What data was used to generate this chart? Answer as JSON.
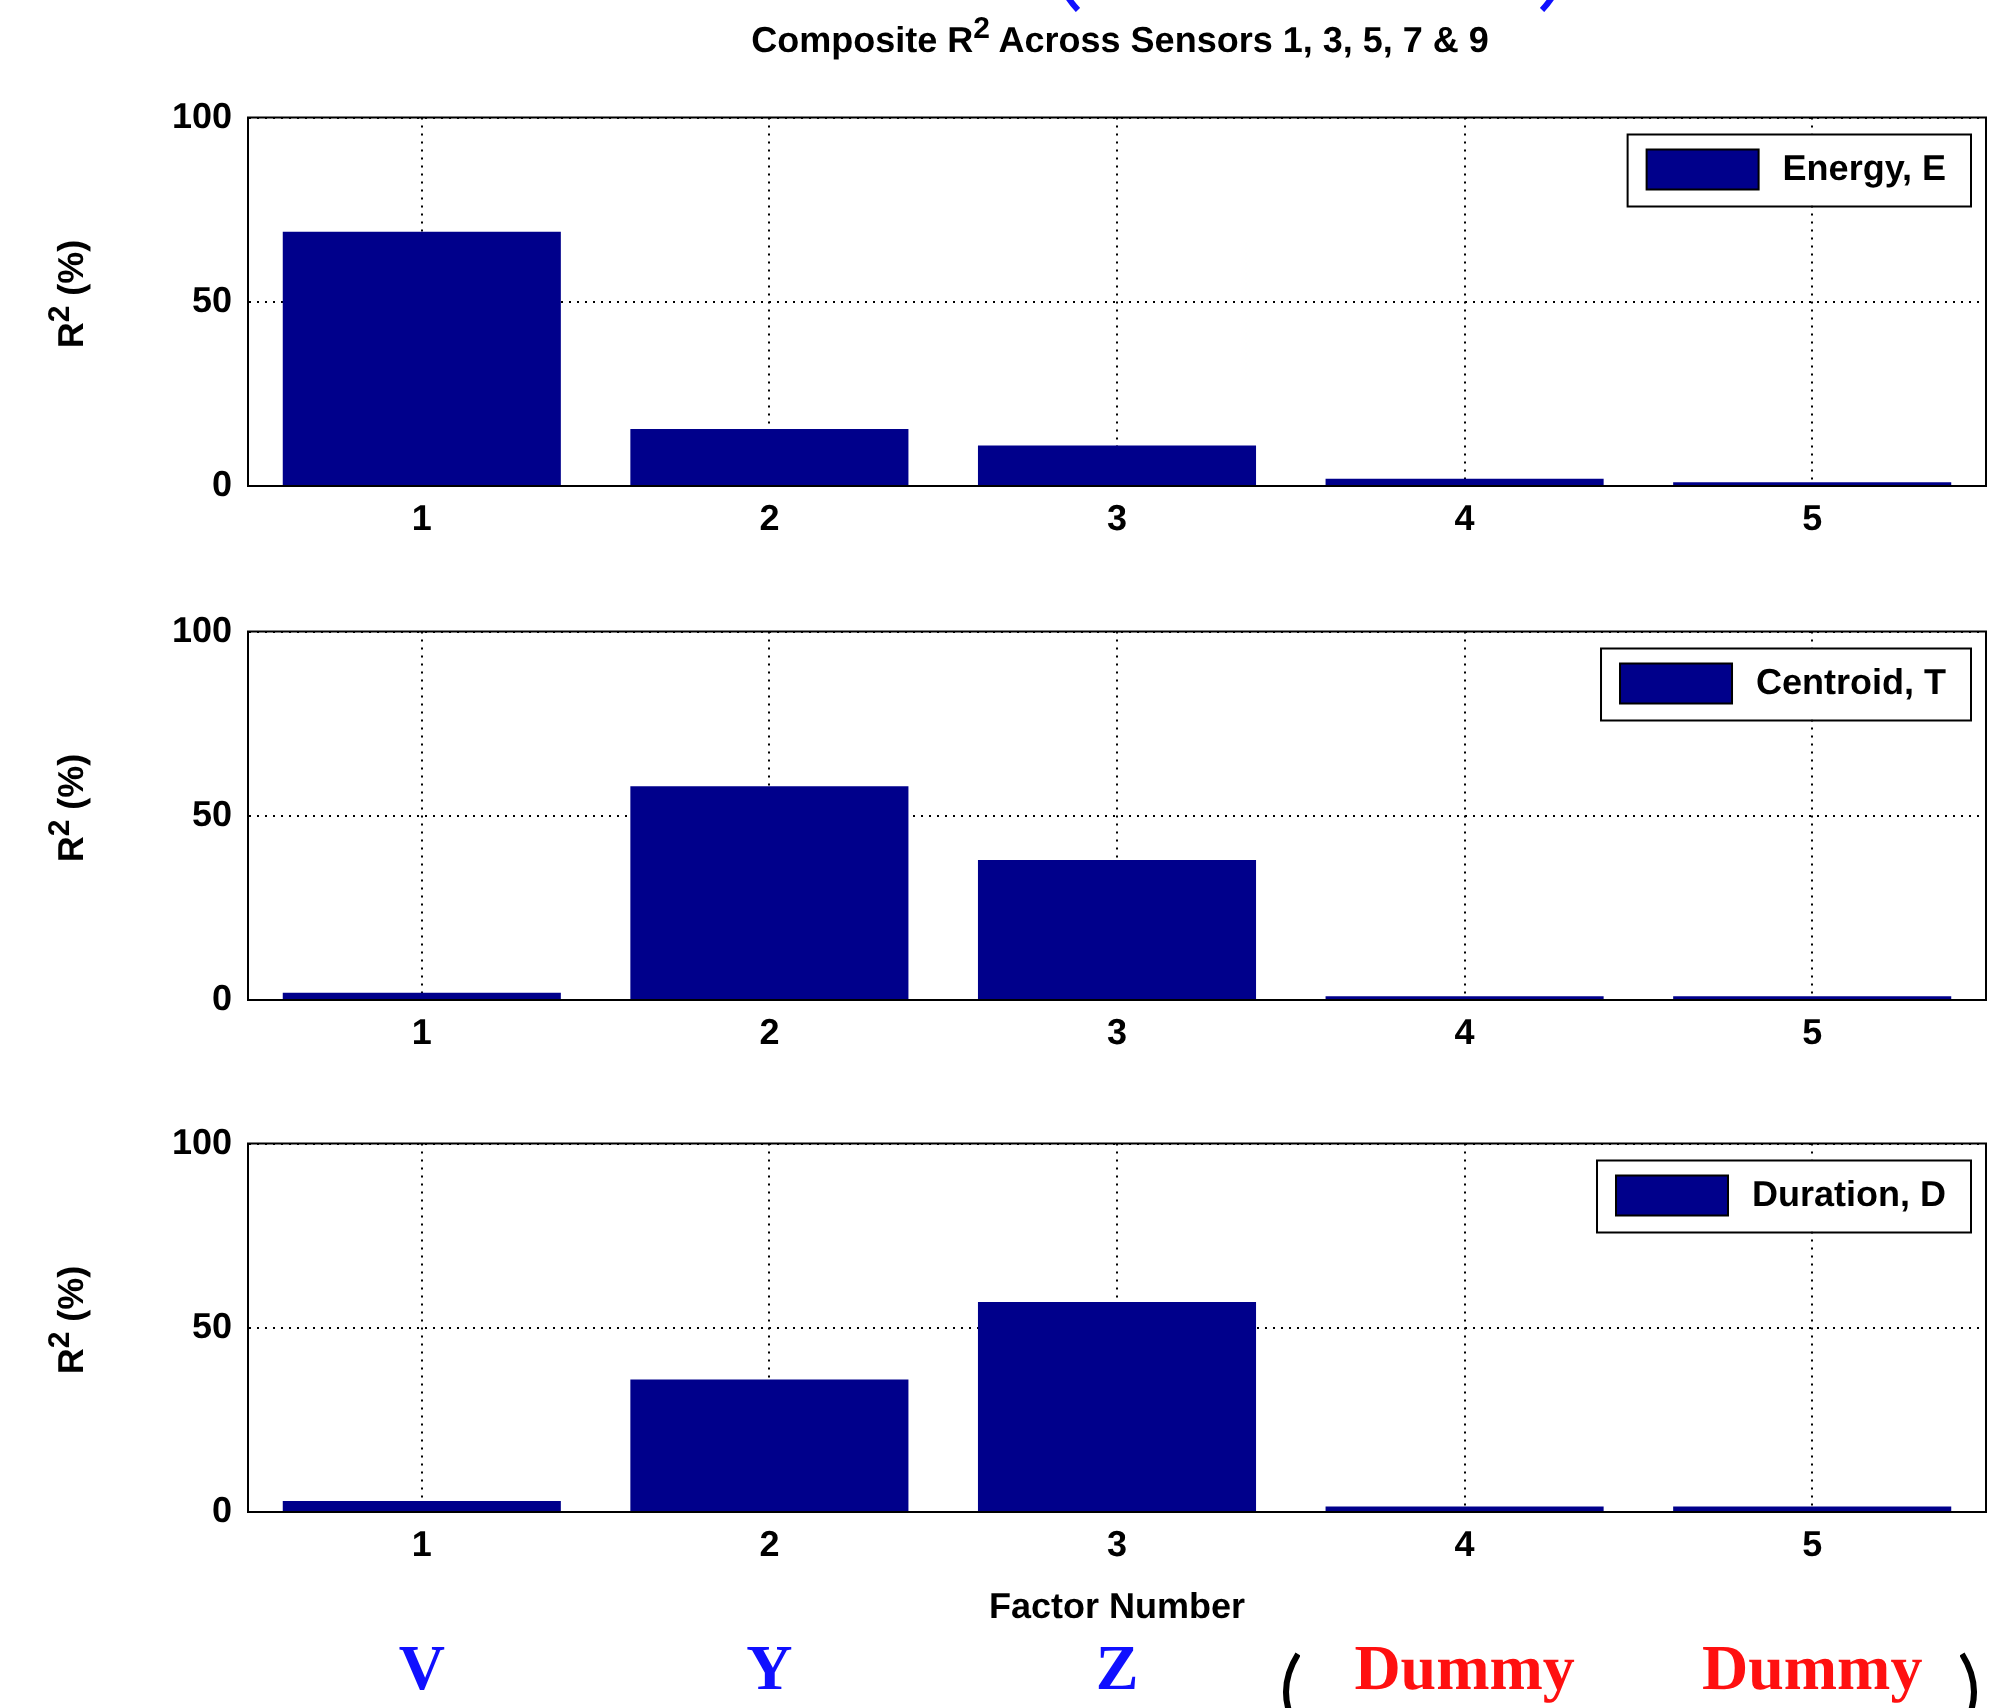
{
  "chart_data": [
    {
      "type": "bar",
      "title": "Composite R$^{2}$ Across Sensors 1, 3, 5, 7 & 9",
      "ylabel": "R$^{2}$ (%)",
      "categories": [
        "1",
        "2",
        "3",
        "4",
        "5"
      ],
      "series": [
        {
          "name": "Energy, E",
          "color": "#00008b",
          "values": [
            69,
            15.5,
            11,
            2,
            1
          ]
        }
      ],
      "ylim": [
        0,
        100
      ],
      "yticks": [
        0,
        50,
        100
      ],
      "grid": true,
      "legend": "top right"
    },
    {
      "type": "bar",
      "ylabel": "R$^{2}$ (%)",
      "categories": [
        "1",
        "2",
        "3",
        "4",
        "5"
      ],
      "series": [
        {
          "name": "Centroid, T",
          "color": "#00008b",
          "values": [
            2,
            58,
            38,
            1,
            1
          ]
        }
      ],
      "ylim": [
        0,
        100
      ],
      "yticks": [
        0,
        50,
        100
      ],
      "grid": true,
      "legend": "top right"
    },
    {
      "type": "bar",
      "ylabel": "R$^{2}$ (%)",
      "xlabel": "Factor Number",
      "categories": [
        "1",
        "2",
        "3",
        "4",
        "5"
      ],
      "series": [
        {
          "name": "Duration, D",
          "color": "#00008b",
          "values": [
            3,
            36,
            57,
            1.5,
            1.5
          ]
        }
      ],
      "ylim": [
        0,
        100
      ],
      "yticks": [
        0,
        50,
        100
      ],
      "grid": true,
      "legend": "top right",
      "annotations": [
        "V",
        "Y",
        "Z",
        "Dummy",
        "Dummy"
      ]
    }
  ]
}
